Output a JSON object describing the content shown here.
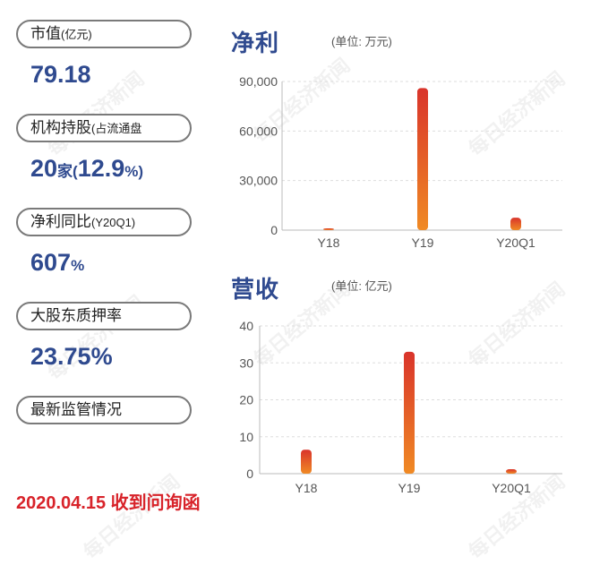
{
  "metrics": [
    {
      "label": "市值",
      "label_sub": "(亿元)",
      "value_main": "79.18",
      "value_parts": []
    },
    {
      "label": "机构持股",
      "label_sub": "(占流通盘",
      "value_parts": [
        "20",
        "家",
        "(",
        "12.9",
        "%)"
      ]
    },
    {
      "label": "净利同比",
      "label_sub": "(Y20Q1)",
      "value_parts": [
        "607",
        "%"
      ]
    },
    {
      "label": "大股东质押率",
      "label_sub": "",
      "value_main": "23.75%",
      "value_parts": []
    },
    {
      "label": "最新监管情况",
      "label_sub": "",
      "value_parts": []
    }
  ],
  "notice": "2020.04.15 收到问询函",
  "watermark_text": "每日经济新闻",
  "colors": {
    "brand_blue": "#2f4a8f",
    "notice_red": "#d8232a",
    "bar_top": "#d9342b",
    "bar_bottom": "#f08a24"
  },
  "chart_data": [
    {
      "type": "bar",
      "title": "净利",
      "unit": "(单位: 万元)",
      "categories": [
        "Y18",
        "Y19",
        "Y20Q1"
      ],
      "values": [
        500,
        86000,
        7500
      ],
      "ylim": [
        0,
        90000
      ],
      "yticks": [
        0,
        30000,
        60000,
        90000
      ],
      "ytick_labels": [
        "0",
        "30,000",
        "60,000",
        "90,000"
      ],
      "grid": true
    },
    {
      "type": "bar",
      "title": "营收",
      "unit": "(单位: 亿元)",
      "categories": [
        "Y18",
        "Y19",
        "Y20Q1"
      ],
      "values": [
        6.5,
        33,
        1.2
      ],
      "ylim": [
        0,
        40
      ],
      "yticks": [
        0,
        10,
        20,
        30,
        40
      ],
      "ytick_labels": [
        "0",
        "10",
        "20",
        "30",
        "40"
      ],
      "grid": true
    }
  ]
}
